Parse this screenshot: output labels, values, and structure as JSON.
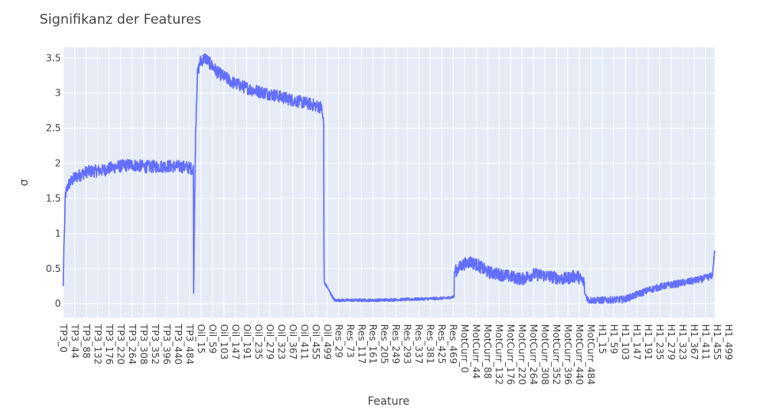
{
  "chart_data": {
    "type": "line",
    "title": "Signifikanz der Features",
    "xlabel": "Feature",
    "ylabel": "σ",
    "ylim": [
      -0.2,
      3.65
    ],
    "yticks": [
      0,
      0.5,
      1,
      1.5,
      2,
      2.5,
      3,
      3.5
    ],
    "x_tick_labels": [
      "TP3_0",
      "TP3_44",
      "TP3_88",
      "TP3_132",
      "TP3_176",
      "TP3_220",
      "TP3_264",
      "TP3_308",
      "TP3_352",
      "TP3_396",
      "TP3_440",
      "TP3_484",
      "Oil_15",
      "Oil_59",
      "Oil_103",
      "Oil_147",
      "Oil_191",
      "Oil_235",
      "Oil_279",
      "Oil_323",
      "Oil_367",
      "Oil_411",
      "Oil_455",
      "Oil_499",
      "Res_29",
      "Res_73",
      "Res_117",
      "Res_161",
      "Res_205",
      "Res_249",
      "Res_293",
      "Res_337",
      "Res_381",
      "Res_425",
      "Res_469",
      "MotCurr_0",
      "MotCurr_44",
      "MotCurr_88",
      "MotCurr_132",
      "MotCurr_176",
      "MotCurr_220",
      "MotCurr_264",
      "MotCurr_308",
      "MotCurr_352",
      "MotCurr_396",
      "MotCurr_440",
      "MotCurr_484",
      "H1_15",
      "H1_59",
      "H1_103",
      "H1_147",
      "H1_191",
      "H1_235",
      "H1_279",
      "H1_323",
      "H1_367",
      "H1_411",
      "H1_455",
      "H1_499"
    ],
    "tick_spacing": 44,
    "series": [
      {
        "segments": [
          {
            "feature_group": "TP3",
            "points": [
              [
                0,
                0.25
              ],
              [
                2,
                0.8
              ],
              [
                4,
                1.0
              ],
              [
                8,
                1.55
              ],
              [
                20,
                1.7
              ],
              [
                45,
                1.8
              ],
              [
                90,
                1.88
              ],
              [
                150,
                1.9
              ],
              [
                200,
                1.95
              ],
              [
                260,
                1.98
              ],
              [
                320,
                1.95
              ],
              [
                400,
                1.96
              ],
              [
                470,
                1.95
              ],
              [
                499,
                1.92
              ]
            ]
          },
          {
            "feature_group": "Oil",
            "points": [
              [
                0,
                0.15
              ],
              [
                4,
                1.5
              ],
              [
                8,
                2.5
              ],
              [
                14,
                3.25
              ],
              [
                25,
                3.45
              ],
              [
                45,
                3.5
              ],
              [
                90,
                3.3
              ],
              [
                150,
                3.15
              ],
              [
                220,
                3.05
              ],
              [
                300,
                2.98
              ],
              [
                380,
                2.9
              ],
              [
                440,
                2.85
              ],
              [
                490,
                2.8
              ],
              [
                499,
                2.55
              ]
            ]
          },
          {
            "feature_group": "Res",
            "points": [
              [
                0,
                0.8
              ],
              [
                1,
                0.3
              ],
              [
                10,
                0.25
              ],
              [
                40,
                0.05
              ],
              [
                100,
                0.05
              ],
              [
                200,
                0.05
              ],
              [
                300,
                0.06
              ],
              [
                400,
                0.07
              ],
              [
                470,
                0.08
              ],
              [
                499,
                0.1
              ]
            ]
          },
          {
            "feature_group": "MotCurr",
            "points": [
              [
                0,
                0.45
              ],
              [
                30,
                0.55
              ],
              [
                60,
                0.6
              ],
              [
                90,
                0.55
              ],
              [
                130,
                0.45
              ],
              [
                200,
                0.4
              ],
              [
                260,
                0.35
              ],
              [
                300,
                0.42
              ],
              [
                350,
                0.4
              ],
              [
                420,
                0.35
              ],
              [
                470,
                0.4
              ],
              [
                499,
                0.3
              ]
            ]
          },
          {
            "feature_group": "H1",
            "points": [
              [
                0,
                0.15
              ],
              [
                15,
                0.05
              ],
              [
                60,
                0.05
              ],
              [
                150,
                0.06
              ],
              [
                200,
                0.13
              ],
              [
                250,
                0.2
              ],
              [
                300,
                0.25
              ],
              [
                380,
                0.3
              ],
              [
                450,
                0.35
              ],
              [
                490,
                0.4
              ],
              [
                499,
                0.75
              ]
            ]
          }
        ],
        "color": "#636efa"
      }
    ],
    "grid": true,
    "plot_background": "#e5ecf6",
    "grid_color": "#ffffff"
  }
}
